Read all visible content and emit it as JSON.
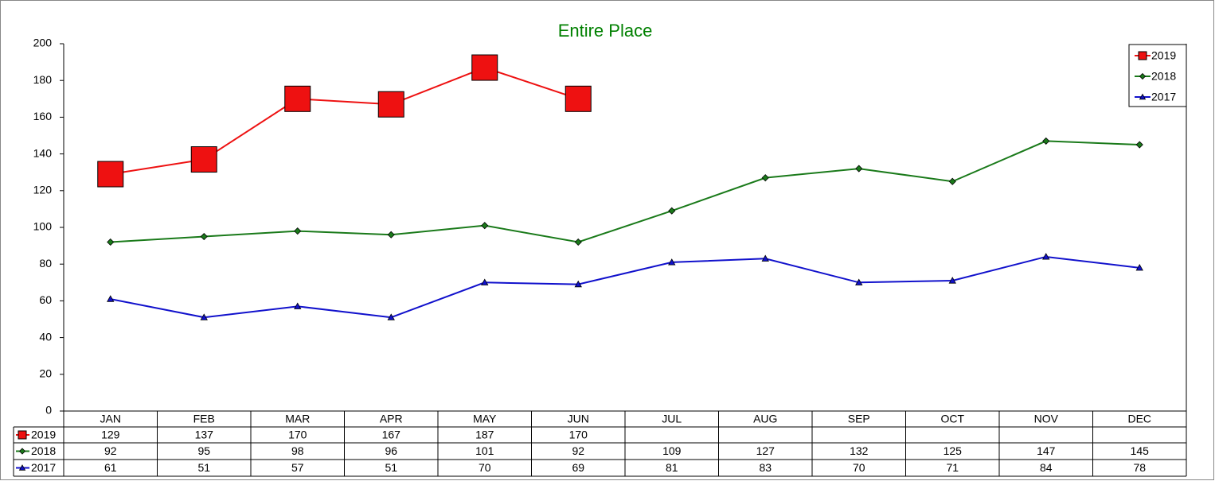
{
  "chart_data": {
    "type": "line",
    "title": "Entire Place",
    "categories": [
      "JAN",
      "FEB",
      "MAR",
      "APR",
      "MAY",
      "JUN",
      "JUL",
      "AUG",
      "SEP",
      "OCT",
      "NOV",
      "DEC"
    ],
    "series": [
      {
        "name": "2019",
        "color": "#ee1111",
        "marker": "square",
        "values": [
          129,
          137,
          170,
          167,
          187,
          170,
          null,
          null,
          null,
          null,
          null,
          null
        ]
      },
      {
        "name": "2018",
        "color": "#1a7a1a",
        "marker": "diamond",
        "values": [
          92,
          95,
          98,
          96,
          101,
          92,
          109,
          127,
          132,
          125,
          147,
          145
        ]
      },
      {
        "name": "2017",
        "color": "#1111cc",
        "marker": "triangle",
        "values": [
          61,
          51,
          57,
          51,
          70,
          69,
          81,
          83,
          70,
          71,
          84,
          78
        ]
      }
    ],
    "ylim": [
      0,
      200
    ],
    "yticks": [
      0,
      20,
      40,
      60,
      80,
      100,
      120,
      140,
      160,
      180,
      200
    ],
    "legend": "top-right",
    "data_table": true
  }
}
